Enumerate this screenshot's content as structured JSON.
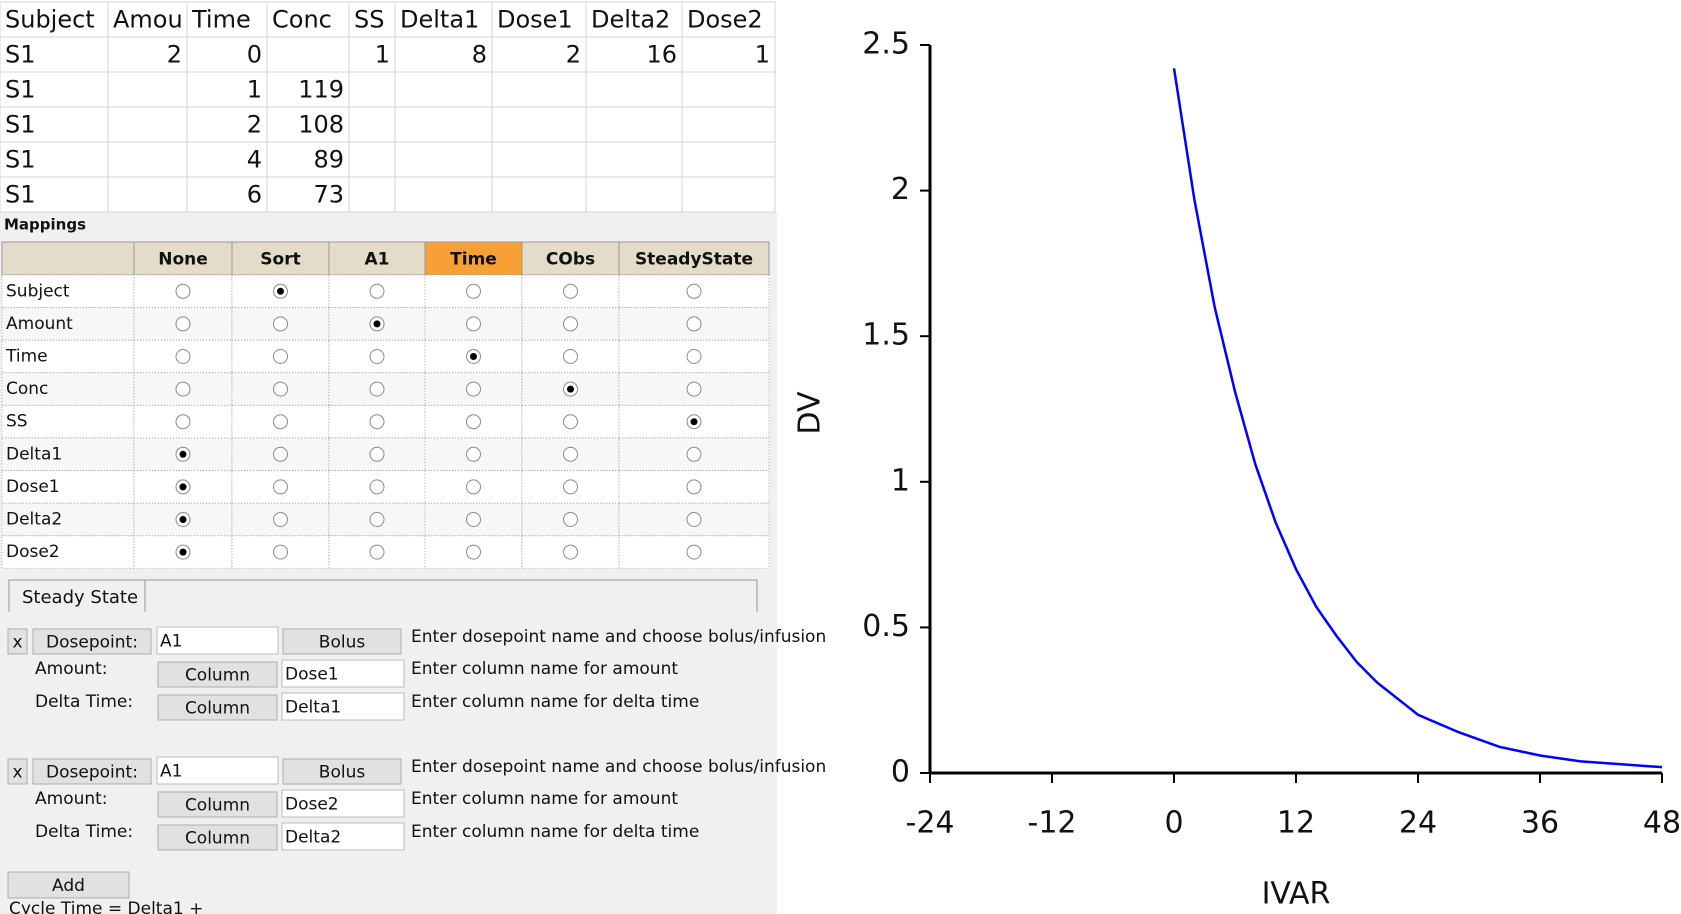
{
  "data_table": {
    "headers": [
      "Subject",
      "Amou",
      "Time",
      "Conc",
      "SS",
      "Delta1",
      "Dose1",
      "Delta2",
      "Dose2"
    ],
    "rows": [
      [
        "S1",
        2,
        0,
        null,
        1,
        8,
        2,
        16,
        1
      ],
      [
        "S1",
        null,
        1,
        119,
        null,
        null,
        null,
        null,
        null
      ],
      [
        "S1",
        null,
        2,
        108,
        null,
        null,
        null,
        null,
        null
      ],
      [
        "S1",
        null,
        4,
        89,
        null,
        null,
        null,
        null,
        null
      ],
      [
        "S1",
        null,
        6,
        73,
        null,
        null,
        null,
        null,
        null
      ]
    ]
  },
  "mappings": {
    "title": "Mappings",
    "columns": [
      "None",
      "Sort",
      "A1",
      "Time",
      "CObs",
      "SteadyState"
    ],
    "rows": [
      {
        "label": "Subject",
        "selected": 1
      },
      {
        "label": "Amount",
        "selected": 2
      },
      {
        "label": "Time",
        "selected": 3
      },
      {
        "label": "Conc",
        "selected": 4
      },
      {
        "label": "SS",
        "selected": 5
      },
      {
        "label": "Delta1",
        "selected": 0
      },
      {
        "label": "Dose1",
        "selected": 0
      },
      {
        "label": "Delta2",
        "selected": 0
      },
      {
        "label": "Dose2",
        "selected": 0
      }
    ]
  },
  "steady_state": {
    "tab": "Steady State",
    "dosepoints": [
      {
        "remove": "x",
        "dosepoint_label": "Dosepoint:",
        "name": "A1",
        "type": "Bolus",
        "name_hint": "Enter dosepoint name and choose bolus/infusion",
        "amount_label": "Amount:",
        "amount_button": "Column",
        "amount_column": "Dose1",
        "amount_hint": "Enter column name for amount",
        "delta_label": "Delta Time:",
        "delta_button": "Column",
        "delta_column": "Delta1",
        "delta_hint": "Enter column name for delta time"
      },
      {
        "remove": "x",
        "dosepoint_label": "Dosepoint:",
        "name": "A1",
        "type": "Bolus",
        "name_hint": "Enter dosepoint name and choose bolus/infusion",
        "amount_label": "Amount:",
        "amount_button": "Column",
        "amount_column": "Dose2",
        "amount_hint": "Enter column name for amount",
        "delta_label": "Delta Time:",
        "delta_button": "Column",
        "delta_column": "Delta2",
        "delta_hint": "Enter column name for delta time"
      }
    ],
    "add": "Add",
    "cycle_time": "Cycle Time = Delta1 +"
  },
  "chart_data": {
    "type": "line",
    "x_label": "IVAR",
    "y_label": "DV",
    "xlim": [
      -24,
      48
    ],
    "xticks": [
      -24,
      -12,
      0,
      12,
      24,
      36,
      48
    ],
    "ylim": [
      0,
      2.5
    ],
    "yticks": [
      0,
      0.5,
      1,
      1.5,
      2,
      2.5
    ],
    "x": [
      0,
      2,
      4,
      6,
      8,
      10,
      12,
      14,
      16,
      18,
      20,
      24,
      28,
      32,
      36,
      40,
      44,
      48
    ],
    "series": [
      {
        "color": "#0000ff",
        "values": [
          2.42,
          1.97,
          1.6,
          1.31,
          1.06,
          0.86,
          0.7,
          0.57,
          0.47,
          0.38,
          0.31,
          0.2,
          0.14,
          0.09,
          0.06,
          0.04,
          0.03,
          0.02
        ]
      }
    ]
  }
}
